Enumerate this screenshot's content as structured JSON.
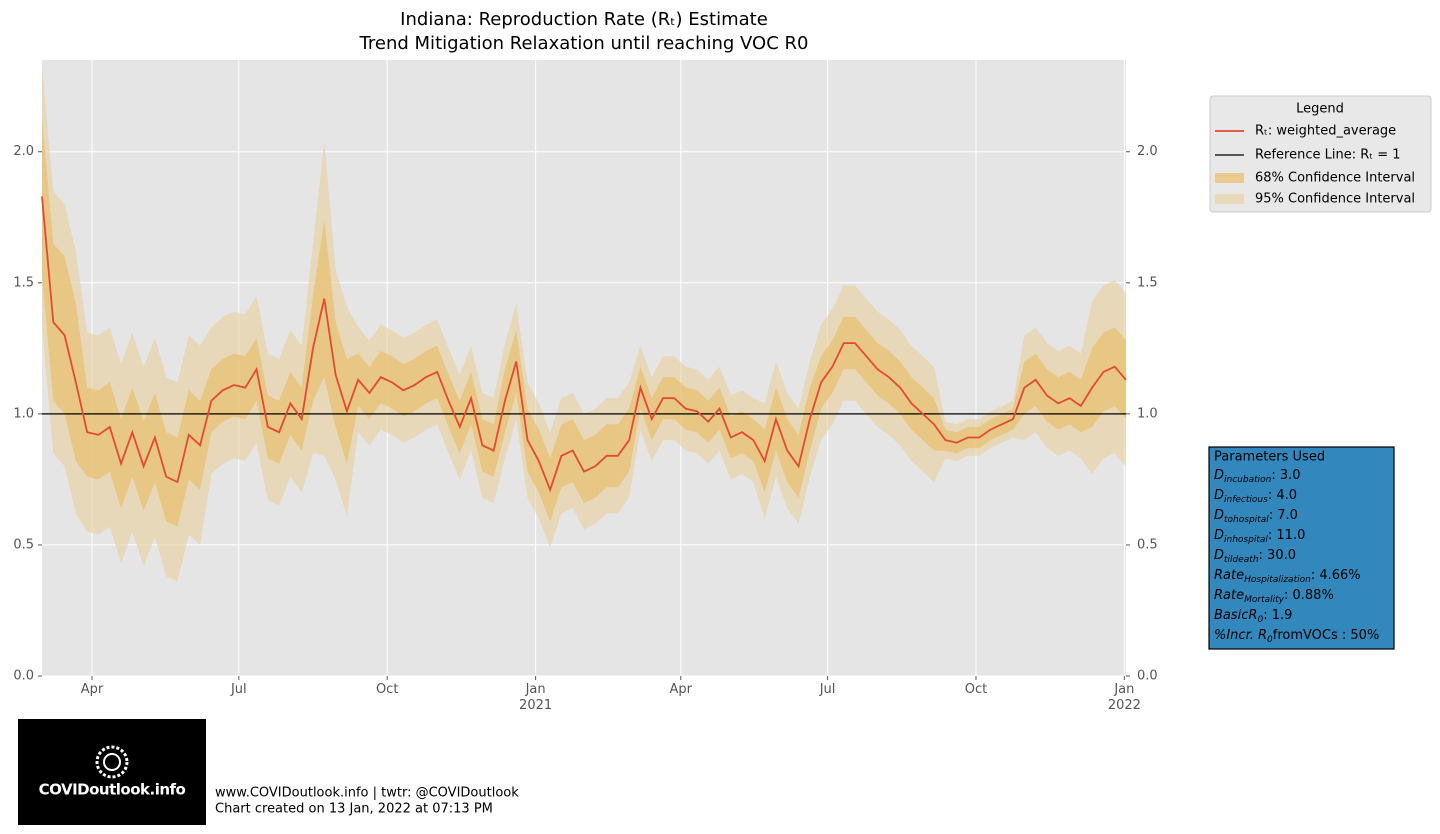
{
  "chart_data": {
    "type": "line",
    "title": "Indiana: Reproduction Rate (Rₜ) Estimate",
    "subtitle": "Trend Mitigation Relaxation until reaching VOC R0",
    "x": [
      "2020-03-01",
      "2020-03-08",
      "2020-03-15",
      "2020-03-22",
      "2020-03-29",
      "2020-04-05",
      "2020-04-12",
      "2020-04-19",
      "2020-04-26",
      "2020-05-03",
      "2020-05-10",
      "2020-05-17",
      "2020-05-24",
      "2020-05-31",
      "2020-06-07",
      "2020-06-14",
      "2020-06-21",
      "2020-06-28",
      "2020-07-05",
      "2020-07-12",
      "2020-07-19",
      "2020-07-26",
      "2020-08-02",
      "2020-08-09",
      "2020-08-16",
      "2020-08-23",
      "2020-08-30",
      "2020-09-06",
      "2020-09-13",
      "2020-09-20",
      "2020-09-27",
      "2020-10-04",
      "2020-10-11",
      "2020-10-18",
      "2020-10-25",
      "2020-11-01",
      "2020-11-08",
      "2020-11-15",
      "2020-11-22",
      "2020-11-29",
      "2020-12-06",
      "2020-12-13",
      "2020-12-20",
      "2020-12-27",
      "2021-01-03",
      "2021-01-10",
      "2021-01-17",
      "2021-01-24",
      "2021-01-31",
      "2021-02-07",
      "2021-02-14",
      "2021-02-21",
      "2021-02-28",
      "2021-03-07",
      "2021-03-14",
      "2021-03-21",
      "2021-03-28",
      "2021-04-04",
      "2021-04-11",
      "2021-04-18",
      "2021-04-25",
      "2021-05-02",
      "2021-05-09",
      "2021-05-16",
      "2021-05-23",
      "2021-05-30",
      "2021-06-06",
      "2021-06-13",
      "2021-06-20",
      "2021-06-27",
      "2021-07-04",
      "2021-07-11",
      "2021-07-18",
      "2021-07-25",
      "2021-08-01",
      "2021-08-08",
      "2021-08-15",
      "2021-08-22",
      "2021-08-29",
      "2021-09-05",
      "2021-09-12",
      "2021-09-19",
      "2021-09-26",
      "2021-10-03",
      "2021-10-10",
      "2021-10-17",
      "2021-10-24",
      "2021-10-31",
      "2021-11-07",
      "2021-11-14",
      "2021-11-21",
      "2021-11-28",
      "2021-12-05",
      "2021-12-12",
      "2021-12-19",
      "2021-12-26",
      "2022-01-02"
    ],
    "xlim": [
      "2020-03-01",
      "2022-01-02"
    ],
    "xticks": [
      {
        "value": "2020-04-01",
        "label": "Apr"
      },
      {
        "value": "2020-07-01",
        "label": "Jul"
      },
      {
        "value": "2020-10-01",
        "label": "Oct"
      },
      {
        "value": "2021-01-01",
        "label": "Jan\n2021"
      },
      {
        "value": "2021-04-01",
        "label": "Apr"
      },
      {
        "value": "2021-07-01",
        "label": "Jul"
      },
      {
        "value": "2021-10-01",
        "label": "Oct"
      },
      {
        "value": "2022-01-01",
        "label": "Jan\n2022"
      }
    ],
    "ylim": [
      0,
      2.35
    ],
    "yticks": [
      {
        "value": 0,
        "label": "0.0"
      },
      0.5,
      {
        "value": 1,
        "label": "1.0"
      },
      1.5,
      {
        "value": 2,
        "label": "2.0"
      }
    ],
    "grid": true,
    "legend": {
      "title": "Legend",
      "position": "outside upper right"
    },
    "series": [
      {
        "name": "Rₜ: weighted_average",
        "color": "#e24a33",
        "values": [
          1.83,
          1.35,
          1.3,
          1.12,
          0.93,
          0.92,
          0.95,
          0.81,
          0.93,
          0.8,
          0.91,
          0.76,
          0.74,
          0.92,
          0.88,
          1.05,
          1.09,
          1.11,
          1.1,
          1.17,
          0.95,
          0.93,
          1.04,
          0.98,
          1.25,
          1.44,
          1.15,
          1.01,
          1.13,
          1.08,
          1.14,
          1.12,
          1.09,
          1.11,
          1.14,
          1.16,
          1.05,
          0.95,
          1.06,
          0.88,
          0.86,
          1.05,
          1.2,
          0.9,
          0.82,
          0.71,
          0.84,
          0.86,
          0.78,
          0.8,
          0.84,
          0.84,
          0.9,
          1.1,
          0.98,
          1.06,
          1.06,
          1.02,
          1.01,
          0.97,
          1.02,
          0.91,
          0.93,
          0.9,
          0.82,
          0.98,
          0.86,
          0.8,
          0.98,
          1.12,
          1.18,
          1.27,
          1.27,
          1.22,
          1.17,
          1.14,
          1.1,
          1.04,
          1.0,
          0.96,
          0.9,
          0.89,
          0.91,
          0.91,
          0.94,
          0.96,
          0.98,
          1.1,
          1.13,
          1.07,
          1.04,
          1.06,
          1.03,
          1.1,
          1.16,
          1.18,
          1.13
        ]
      }
    ],
    "reference_line": {
      "name": "Reference Line: Rₜ = 1",
      "value": 1,
      "color": "#000000"
    },
    "bands": [
      {
        "name": "68% Confidence Interval",
        "color": "#e8c072",
        "opacity": 0.75,
        "lower": [
          1.53,
          1.05,
          1.0,
          0.82,
          0.76,
          0.75,
          0.78,
          0.64,
          0.76,
          0.63,
          0.74,
          0.59,
          0.57,
          0.75,
          0.71,
          0.93,
          0.97,
          0.99,
          0.98,
          1.05,
          0.83,
          0.81,
          0.92,
          0.86,
          1.05,
          1.14,
          0.95,
          0.81,
          1.03,
          0.98,
          1.04,
          1.02,
          0.99,
          1.01,
          1.04,
          1.06,
          0.95,
          0.85,
          0.96,
          0.78,
          0.76,
          0.93,
          1.08,
          0.78,
          0.7,
          0.59,
          0.72,
          0.74,
          0.66,
          0.68,
          0.72,
          0.72,
          0.78,
          1.02,
          0.9,
          0.98,
          0.98,
          0.94,
          0.93,
          0.89,
          0.94,
          0.83,
          0.85,
          0.82,
          0.7,
          0.86,
          0.74,
          0.68,
          0.86,
          1.02,
          1.08,
          1.17,
          1.17,
          1.12,
          1.07,
          1.04,
          1.0,
          0.94,
          0.9,
          0.86,
          0.86,
          0.85,
          0.87,
          0.87,
          0.9,
          0.92,
          0.94,
          1.0,
          1.03,
          0.97,
          0.94,
          0.96,
          0.93,
          0.95,
          1.01,
          1.03,
          0.98
        ],
        "upper": [
          2.13,
          1.65,
          1.6,
          1.42,
          1.1,
          1.09,
          1.12,
          0.98,
          1.1,
          0.97,
          1.08,
          0.93,
          0.91,
          1.09,
          1.05,
          1.17,
          1.21,
          1.23,
          1.22,
          1.29,
          1.07,
          1.05,
          1.16,
          1.1,
          1.45,
          1.74,
          1.35,
          1.21,
          1.23,
          1.18,
          1.24,
          1.22,
          1.19,
          1.21,
          1.24,
          1.26,
          1.15,
          1.05,
          1.16,
          0.98,
          0.96,
          1.17,
          1.32,
          1.02,
          0.94,
          0.83,
          0.96,
          0.98,
          0.9,
          0.92,
          0.96,
          0.96,
          1.02,
          1.18,
          1.06,
          1.14,
          1.14,
          1.1,
          1.09,
          1.05,
          1.1,
          0.99,
          1.01,
          0.98,
          0.94,
          1.1,
          0.98,
          0.92,
          1.1,
          1.22,
          1.28,
          1.37,
          1.37,
          1.32,
          1.27,
          1.24,
          1.2,
          1.14,
          1.1,
          1.06,
          0.94,
          0.93,
          0.95,
          0.95,
          0.98,
          1.0,
          1.02,
          1.2,
          1.23,
          1.17,
          1.14,
          1.16,
          1.13,
          1.25,
          1.31,
          1.33,
          1.28
        ]
      },
      {
        "name": "95% Confidence Interval",
        "color": "#e8cf9c",
        "opacity": 0.6,
        "lower": [
          1.33,
          0.85,
          0.8,
          0.62,
          0.55,
          0.54,
          0.57,
          0.43,
          0.55,
          0.42,
          0.53,
          0.38,
          0.36,
          0.54,
          0.5,
          0.77,
          0.81,
          0.83,
          0.82,
          0.89,
          0.67,
          0.65,
          0.76,
          0.7,
          0.85,
          0.84,
          0.75,
          0.61,
          0.93,
          0.88,
          0.94,
          0.92,
          0.89,
          0.91,
          0.94,
          0.96,
          0.85,
          0.75,
          0.86,
          0.68,
          0.66,
          0.83,
          0.98,
          0.68,
          0.6,
          0.49,
          0.62,
          0.64,
          0.56,
          0.58,
          0.62,
          0.62,
          0.68,
          0.94,
          0.82,
          0.9,
          0.9,
          0.86,
          0.85,
          0.81,
          0.86,
          0.75,
          0.77,
          0.74,
          0.6,
          0.76,
          0.64,
          0.58,
          0.76,
          0.9,
          0.96,
          1.05,
          1.05,
          1.0,
          0.95,
          0.92,
          0.88,
          0.82,
          0.78,
          0.74,
          0.83,
          0.82,
          0.84,
          0.84,
          0.87,
          0.89,
          0.91,
          0.9,
          0.93,
          0.87,
          0.84,
          0.86,
          0.83,
          0.77,
          0.83,
          0.85,
          0.8
        ],
        "upper": [
          2.33,
          1.85,
          1.8,
          1.62,
          1.31,
          1.3,
          1.33,
          1.19,
          1.31,
          1.18,
          1.29,
          1.14,
          1.12,
          1.3,
          1.26,
          1.33,
          1.37,
          1.39,
          1.38,
          1.45,
          1.23,
          1.21,
          1.32,
          1.26,
          1.65,
          2.04,
          1.55,
          1.41,
          1.33,
          1.28,
          1.34,
          1.32,
          1.29,
          1.31,
          1.34,
          1.36,
          1.25,
          1.15,
          1.26,
          1.08,
          1.06,
          1.27,
          1.42,
          1.12,
          1.04,
          0.93,
          1.06,
          1.08,
          1.0,
          1.02,
          1.06,
          1.06,
          1.12,
          1.26,
          1.14,
          1.22,
          1.22,
          1.18,
          1.17,
          1.13,
          1.18,
          1.07,
          1.09,
          1.06,
          1.04,
          1.2,
          1.08,
          1.02,
          1.2,
          1.34,
          1.4,
          1.49,
          1.49,
          1.44,
          1.39,
          1.36,
          1.32,
          1.26,
          1.22,
          1.18,
          0.97,
          0.96,
          0.98,
          0.98,
          1.01,
          1.03,
          1.05,
          1.3,
          1.33,
          1.27,
          1.24,
          1.26,
          1.23,
          1.43,
          1.49,
          1.51,
          1.46
        ]
      }
    ]
  },
  "parameters": {
    "title": "Parameters Used",
    "lines": [
      [
        "D",
        "incubation",
        ": 3.0"
      ],
      [
        "D",
        "infectious",
        ": 4.0"
      ],
      [
        "D",
        "tohospital",
        ": 7.0"
      ],
      [
        "D",
        "inhospital",
        ": 11.0"
      ],
      [
        "D",
        "tildeath",
        ": 30.0"
      ],
      [
        "Rate",
        "Hospitalization",
        ": 4.66%"
      ],
      [
        "Rate",
        "Mortality",
        ": 0.88%"
      ],
      [
        "BasicR",
        "0",
        ": 1.9"
      ],
      [
        "%Incr. R",
        "0",
        "fromVOCs : 50%"
      ]
    ]
  },
  "footer": {
    "logo_text": "COVIDoutlook.info",
    "lines": [
      "www.COVIDoutlook.info | twtr: @COVIDoutlook",
      "Chart created on 13 Jan, 2022 at 07:13 PM"
    ]
  }
}
